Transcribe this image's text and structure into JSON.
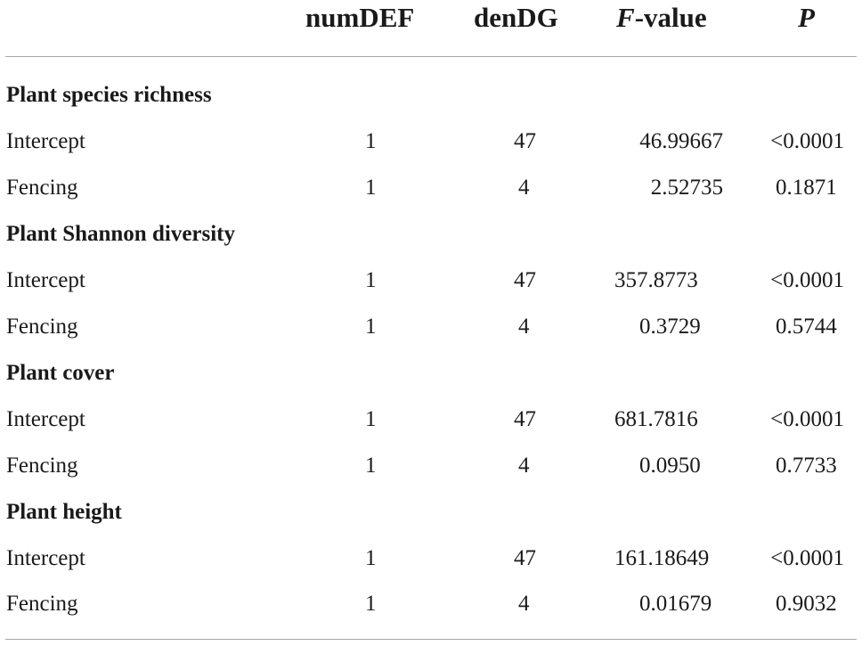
{
  "table": {
    "headers": {
      "num_def": "numDEF",
      "den_dg": "denDG",
      "f_value_prefix": "F",
      "f_value_suffix": "-value",
      "p": "P"
    },
    "sections": [
      {
        "title": "Plant species richness",
        "rows": [
          {
            "term": "Intercept",
            "num_def": "1",
            "den_dg": "47",
            "f_value": "46.99667",
            "p": "<0.0001"
          },
          {
            "term": "Fencing",
            "num_def": "1",
            "den_dg": "4",
            "f_value": "2.52735",
            "p": "0.1871"
          }
        ]
      },
      {
        "title": "Plant Shannon diversity",
        "rows": [
          {
            "term": "Intercept",
            "num_def": "1",
            "den_dg": "47",
            "f_value": "357.8773",
            "p": "<0.0001"
          },
          {
            "term": "Fencing",
            "num_def": "1",
            "den_dg": "4",
            "f_value": "0.3729",
            "p": "0.5744"
          }
        ]
      },
      {
        "title": "Plant cover",
        "rows": [
          {
            "term": "Intercept",
            "num_def": "1",
            "den_dg": "47",
            "f_value": "681.7816",
            "p": "<0.0001"
          },
          {
            "term": "Fencing",
            "num_def": "1",
            "den_dg": "4",
            "f_value": "0.0950",
            "p": "0.7733"
          }
        ]
      },
      {
        "title": "Plant height",
        "rows": [
          {
            "term": "Intercept",
            "num_def": "1",
            "den_dg": "47",
            "f_value": "161.18649",
            "p": "<0.0001"
          },
          {
            "term": "Fencing",
            "num_def": "1",
            "den_dg": "4",
            "f_value": "0.01679",
            "p": "0.9032"
          }
        ]
      }
    ]
  }
}
